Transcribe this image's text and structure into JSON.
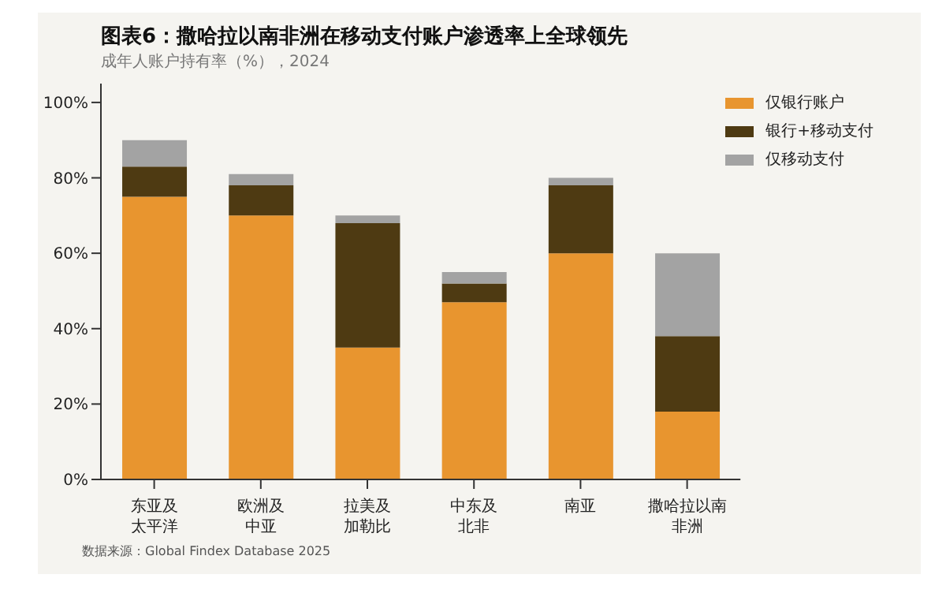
{
  "chart_data": {
    "type": "bar",
    "title": "图表6：撒哈拉以南非洲在移动支付账户渗透率上全球领先",
    "subtitle": "成年人账户持有率（%），2024",
    "categories": [
      "东亚及太平洋",
      "欧洲及中亚",
      "拉美及加勒比",
      "中东及北非",
      "南亚",
      "撒哈拉以南非洲"
    ],
    "series": [
      {
        "name": "仅银行账户",
        "color": "#e8952f",
        "values": [
          75,
          70,
          35,
          47,
          60,
          18
        ]
      },
      {
        "name": "银行+移动支付",
        "color": "#4e3a12",
        "values": [
          8,
          8,
          33,
          5,
          18,
          20
        ]
      },
      {
        "name": "仅移动支付",
        "color": "#a3a3a3",
        "values": [
          7,
          3,
          2,
          3,
          2,
          22
        ]
      }
    ],
    "stacked": true,
    "ylim": [
      0,
      105
    ],
    "yticks": [
      {
        "value": 0,
        "label": "0%"
      },
      {
        "value": 20,
        "label": "20%"
      },
      {
        "value": 40,
        "label": "40%"
      },
      {
        "value": 60,
        "label": "60%"
      },
      {
        "value": 80,
        "label": "80%"
      },
      {
        "value": 100,
        "label": "100%"
      }
    ],
    "grid": false,
    "legend": "top right",
    "annotations": [
      "数据来源：Global Findex Database 2025"
    ]
  }
}
